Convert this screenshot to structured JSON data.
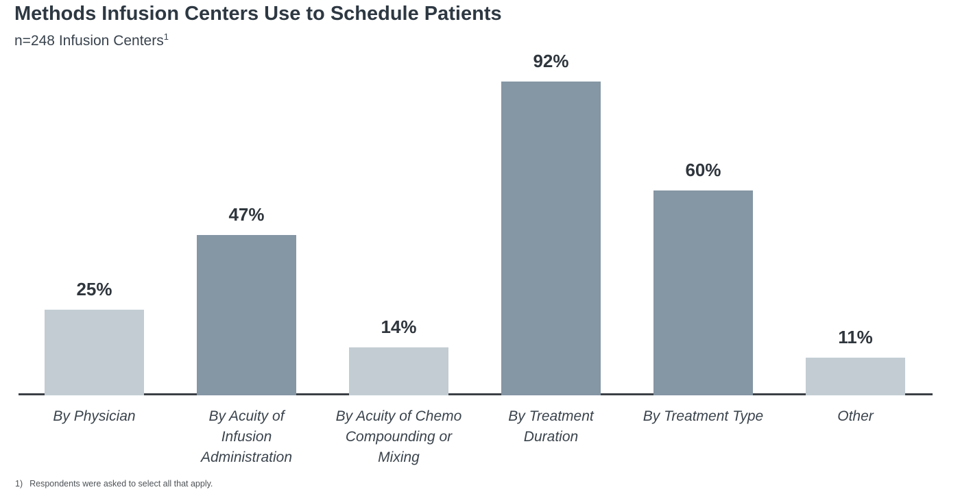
{
  "header": {
    "title": "Methods Infusion Centers Use to Schedule Patients",
    "subtitle": "n=248 Infusion Centers",
    "subtitle_superscript": "1"
  },
  "chart_data": {
    "type": "bar",
    "title": "Methods Infusion Centers Use to Schedule Patients",
    "subtitle": "n=248 Infusion Centers",
    "categories": [
      "By Physician",
      "By Acuity of Infusion Administration",
      "By Acuity of Chemo Compounding or Mixing",
      "By Treatment Duration",
      "By Treatment Type",
      "Other"
    ],
    "category_label_lines": [
      [
        "By Physician"
      ],
      [
        "By Acuity of",
        "Infusion",
        "Administration"
      ],
      [
        "By Acuity of Chemo",
        "Compounding or",
        "Mixing"
      ],
      [
        "By Treatment",
        "Duration"
      ],
      [
        "By Treatment Type"
      ],
      [
        "Other"
      ]
    ],
    "values": [
      25,
      47,
      14,
      92,
      60,
      11
    ],
    "value_labels": [
      "25%",
      "47%",
      "14%",
      "92%",
      "60%",
      "11%"
    ],
    "unit": "%",
    "ylim": [
      0,
      100
    ],
    "grid": false,
    "legend": "none",
    "value_labels_position": "above-bars",
    "bar_colors": [
      "#c3ccd3",
      "#8596a4",
      "#c3ccd3",
      "#8596a4",
      "#8596a4",
      "#c3ccd3"
    ]
  },
  "colors": {
    "bar_light": "#c3ccd3",
    "bar_dark": "#8596a4",
    "axis_line": "#3a3f45",
    "title_text": "#2d3842"
  },
  "footnote": {
    "marker": "1)",
    "text": "Respondents were asked to select all that apply."
  }
}
